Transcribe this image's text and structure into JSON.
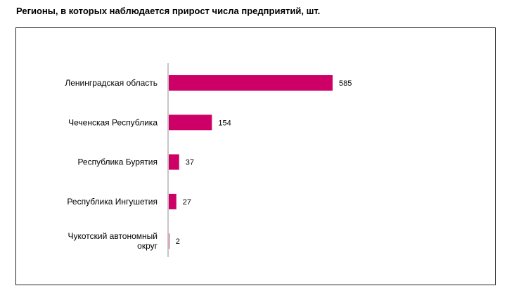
{
  "title": "Регионы, в которых наблюдается  прирост числа предприятий, шт.",
  "chart_data": {
    "type": "bar",
    "orientation": "horizontal",
    "title": "Регионы, в которых наблюдается  прирост числа предприятий, шт.",
    "categories": [
      "Ленинградская  область",
      "Чеченская Республика",
      "Республика  Бурятия",
      "Республика  Ингушетия",
      "Чукотский автономный округ"
    ],
    "category_lines": [
      [
        "Ленинградская  область"
      ],
      [
        "Чеченская Республика"
      ],
      [
        "Республика  Бурятия"
      ],
      [
        "Республика  Ингушетия"
      ],
      [
        "Чукотский автономный",
        "округ"
      ]
    ],
    "values": [
      585,
      154,
      37,
      27,
      2
    ],
    "value_labels": [
      "585",
      "154",
      "37",
      "27",
      "2"
    ],
    "bar_color": "#CC0066",
    "xlim": [
      0,
      600
    ],
    "grid": false,
    "legend": "none"
  }
}
